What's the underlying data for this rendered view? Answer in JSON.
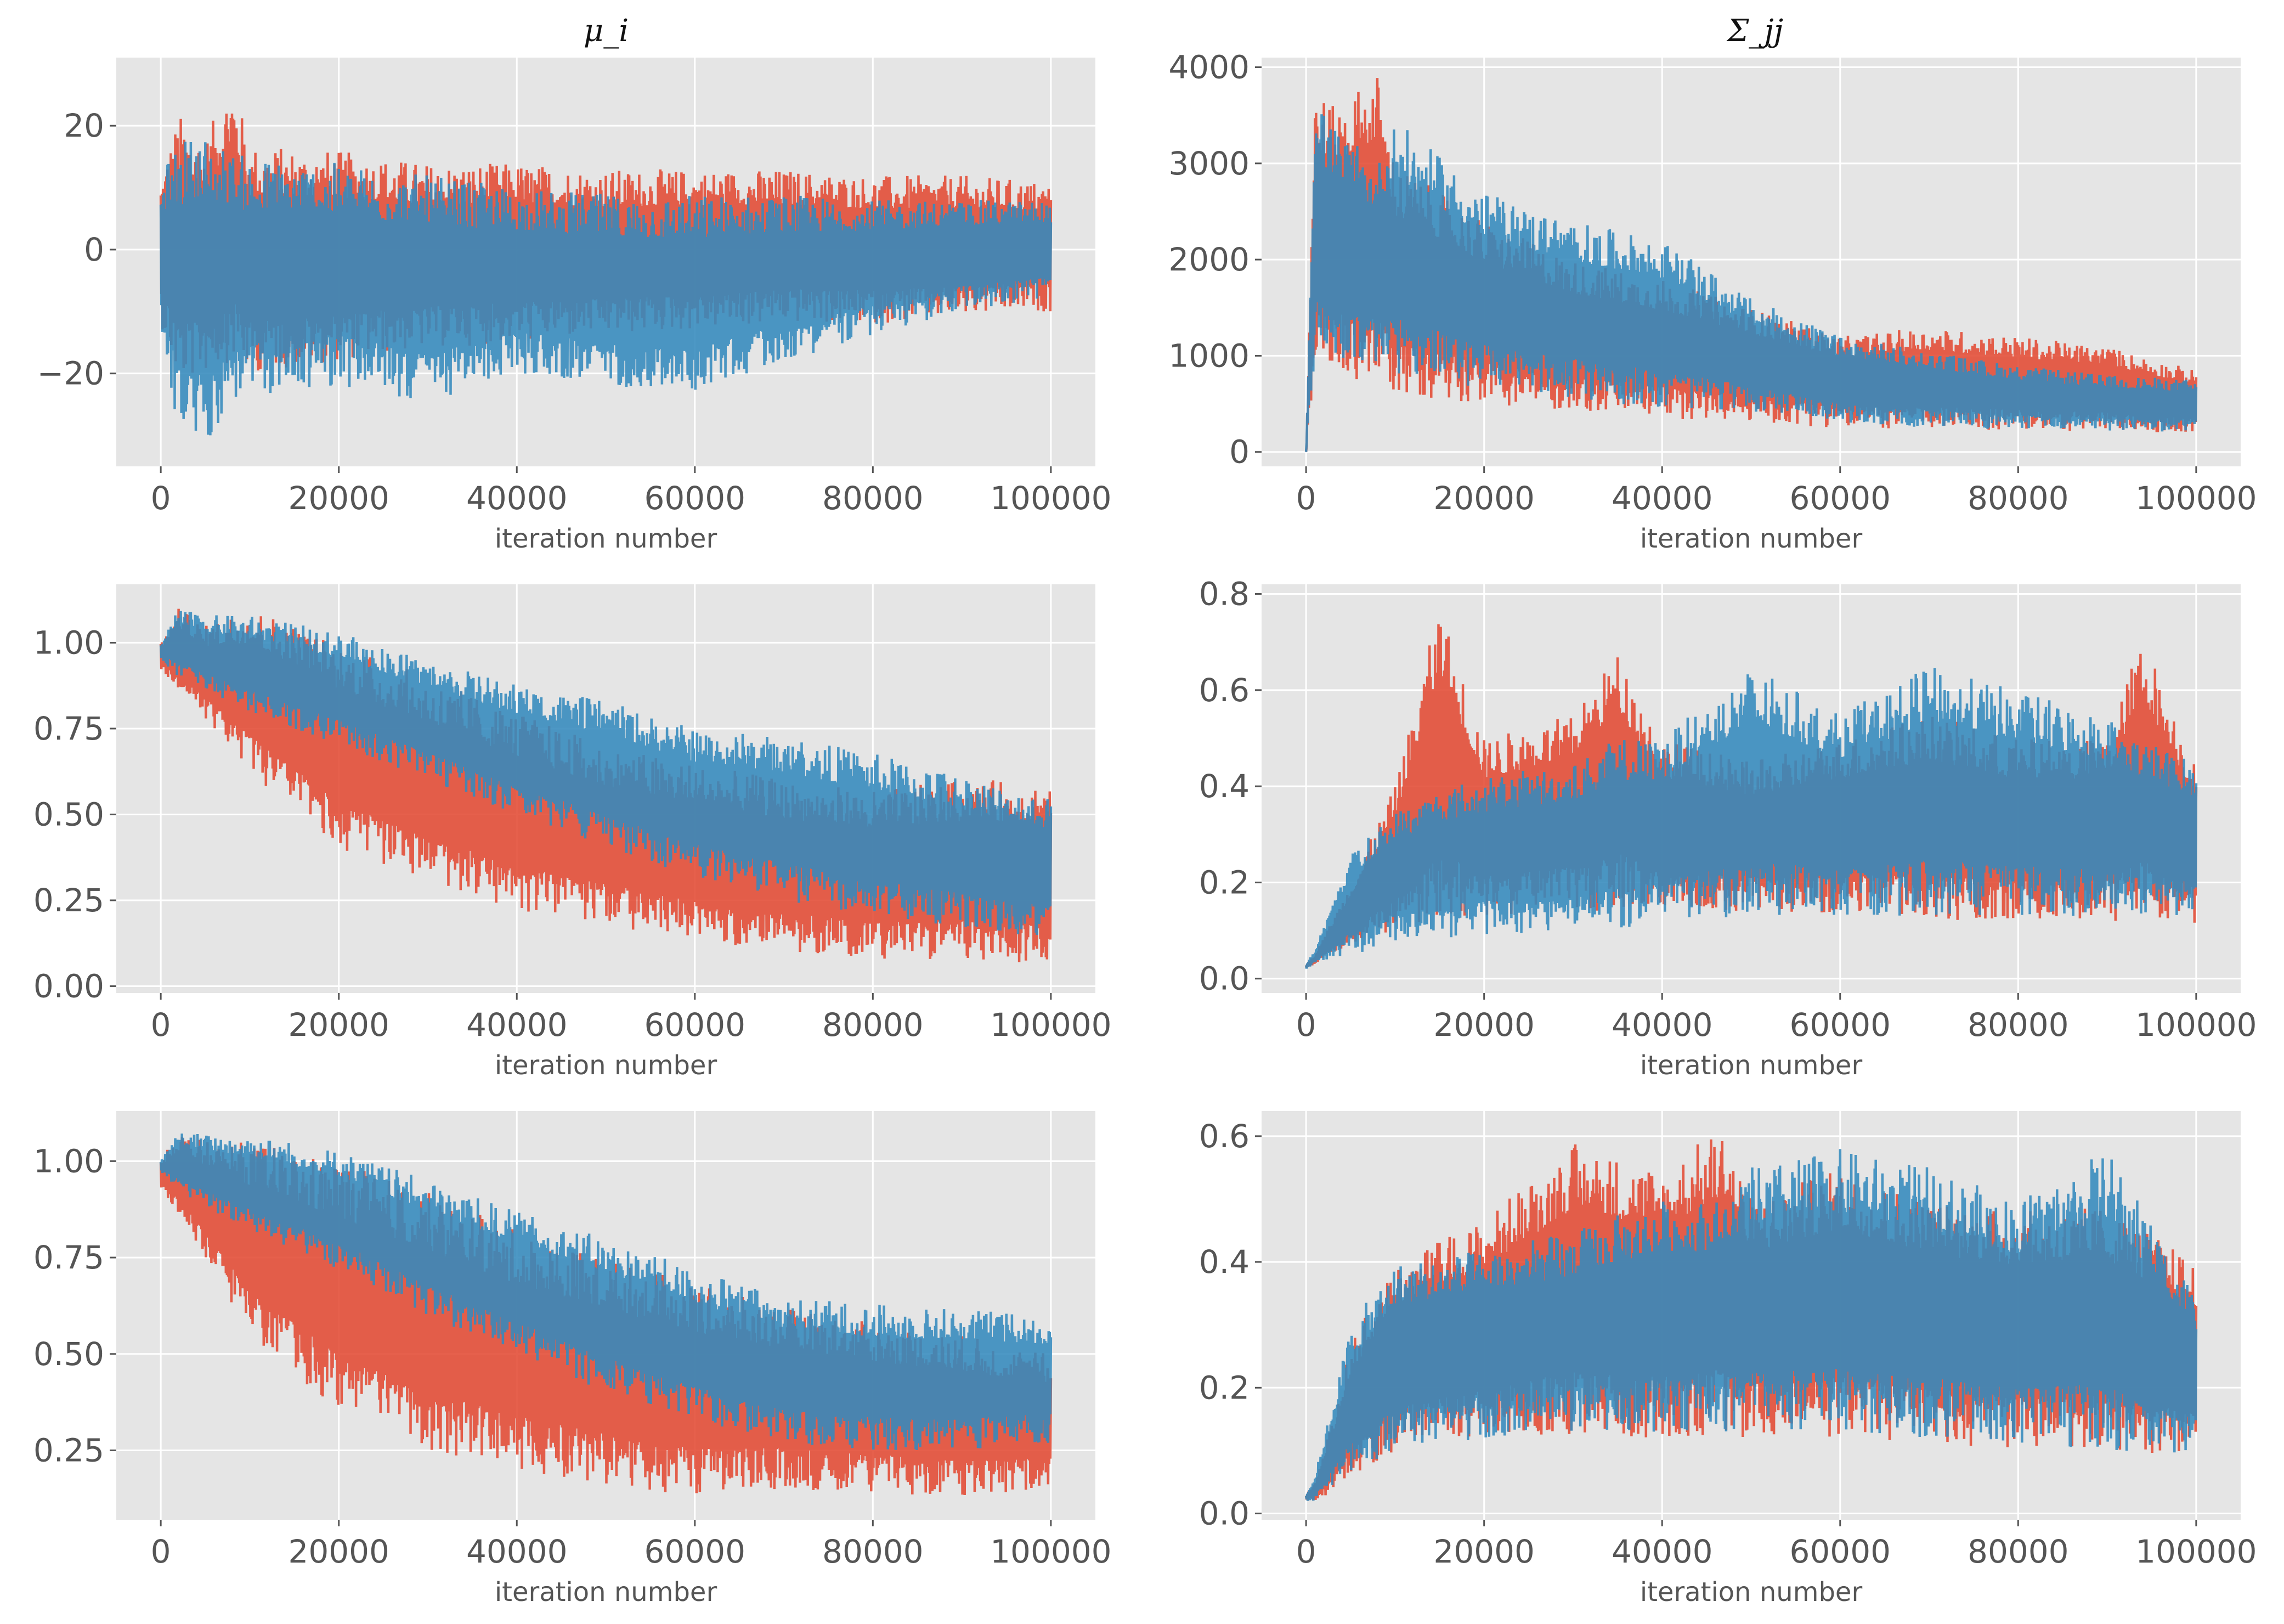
{
  "column_titles": [
    "μ_i",
    "Σ_jj"
  ],
  "colors": {
    "series_1": "#E24A33",
    "series_2": "#348ABD",
    "panel_bg": "#E5E5E5",
    "grid": "#FFFFFF"
  },
  "chart_data": [
    {
      "type": "line",
      "title": "",
      "xlabel": "iteration number",
      "xlim": [
        -5000,
        105000
      ],
      "xticks": [
        0,
        20000,
        40000,
        60000,
        80000,
        100000
      ],
      "ylim": [
        -35,
        31
      ],
      "yticks": [
        -20,
        0,
        20
      ],
      "ytick_labels": [
        "−20",
        "0",
        "20"
      ],
      "series": [
        {
          "color": "#E24A33",
          "x": [
            0,
            2000,
            5000,
            8000,
            10000,
            20000,
            30000,
            40000,
            50000,
            60000,
            70000,
            80000,
            90000,
            100000
          ],
          "upper": [
            12,
            22,
            18,
            28,
            17,
            16,
            14,
            14,
            13,
            13,
            13,
            12,
            12,
            11
          ],
          "lower": [
            -12,
            -22,
            -20,
            -18,
            -20,
            -18,
            -16,
            -15,
            -14,
            -13,
            -12,
            -12,
            -11,
            -10
          ]
        },
        {
          "color": "#348ABD",
          "x": [
            0,
            2000,
            5000,
            8000,
            10000,
            20000,
            30000,
            40000,
            50000,
            60000,
            70000,
            80000,
            90000,
            100000
          ],
          "upper": [
            12,
            18,
            19,
            16,
            15,
            14,
            12,
            10,
            9,
            9,
            9,
            8,
            8,
            8
          ],
          "lower": [
            -14,
            -30,
            -32,
            -25,
            -24,
            -22,
            -25,
            -20,
            -22,
            -23,
            -18,
            -14,
            -10,
            -8
          ]
        }
      ]
    },
    {
      "type": "line",
      "title": "",
      "xlabel": "iteration number",
      "xlim": [
        -5000,
        105000
      ],
      "xticks": [
        0,
        20000,
        40000,
        60000,
        80000,
        100000
      ],
      "ylim": [
        -150,
        4100
      ],
      "yticks": [
        0,
        1000,
        2000,
        3000,
        4000
      ],
      "ytick_labels": [
        "0",
        "1000",
        "2000",
        "3000",
        "4000"
      ],
      "series": [
        {
          "color": "#E24A33",
          "x": [
            0,
            1000,
            3000,
            8000,
            10000,
            20000,
            30000,
            40000,
            50000,
            60000,
            70000,
            80000,
            90000,
            100000
          ],
          "upper": [
            0,
            3800,
            3600,
            3950,
            3000,
            2400,
            2000,
            1800,
            1500,
            1200,
            1300,
            1200,
            1100,
            850
          ],
          "lower": [
            0,
            900,
            800,
            700,
            600,
            500,
            420,
            350,
            300,
            250,
            230,
            220,
            210,
            200
          ]
        },
        {
          "color": "#348ABD",
          "x": [
            0,
            1000,
            3000,
            8000,
            10000,
            20000,
            30000,
            40000,
            50000,
            60000,
            70000,
            80000,
            90000,
            100000
          ],
          "upper": [
            0,
            3700,
            3400,
            3000,
            3450,
            2700,
            2400,
            2200,
            1600,
            1200,
            1050,
            900,
            800,
            750
          ],
          "lower": [
            0,
            1000,
            950,
            900,
            800,
            650,
            550,
            450,
            420,
            300,
            250,
            230,
            220,
            200
          ]
        }
      ]
    },
    {
      "type": "line",
      "title": "",
      "xlabel": "iteration number",
      "xlim": [
        -5000,
        105000
      ],
      "xticks": [
        0,
        20000,
        40000,
        60000,
        80000,
        100000
      ],
      "ylim": [
        -0.02,
        1.17
      ],
      "yticks": [
        0.0,
        0.25,
        0.5,
        0.75,
        1.0
      ],
      "ytick_labels": [
        "0.00",
        "0.25",
        "0.50",
        "0.75",
        "1.00"
      ],
      "series": [
        {
          "color": "#E24A33",
          "x": [
            0,
            2000,
            5000,
            10000,
            20000,
            30000,
            40000,
            50000,
            60000,
            70000,
            80000,
            90000,
            100000
          ],
          "upper": [
            1.0,
            1.1,
            1.05,
            1.11,
            1.0,
            0.9,
            0.8,
            0.7,
            0.65,
            0.6,
            0.57,
            0.6,
            0.6
          ],
          "lower": [
            0.92,
            0.85,
            0.78,
            0.62,
            0.4,
            0.3,
            0.22,
            0.18,
            0.13,
            0.1,
            0.08,
            0.07,
            0.07
          ]
        },
        {
          "color": "#348ABD",
          "x": [
            0,
            2000,
            5000,
            10000,
            20000,
            30000,
            40000,
            50000,
            60000,
            70000,
            80000,
            90000,
            100000
          ],
          "upper": [
            1.0,
            1.1,
            1.08,
            1.08,
            1.03,
            0.95,
            0.88,
            0.83,
            0.75,
            0.73,
            0.68,
            0.62,
            0.55
          ],
          "lower": [
            0.95,
            0.9,
            0.86,
            0.8,
            0.7,
            0.6,
            0.5,
            0.4,
            0.32,
            0.25,
            0.2,
            0.17,
            0.14
          ]
        }
      ]
    },
    {
      "type": "line",
      "title": "",
      "xlabel": "iteration number",
      "xlim": [
        -5000,
        105000
      ],
      "xticks": [
        0,
        20000,
        40000,
        60000,
        80000,
        100000
      ],
      "ylim": [
        -0.03,
        0.82
      ],
      "yticks": [
        0.0,
        0.2,
        0.4,
        0.6,
        0.8
      ],
      "ytick_labels": [
        "0.0",
        "0.2",
        "0.4",
        "0.6",
        "0.8"
      ],
      "series": [
        {
          "color": "#E24A33",
          "x": [
            0,
            1000,
            5000,
            10000,
            15000,
            20000,
            30000,
            35000,
            40000,
            50000,
            60000,
            70000,
            80000,
            90000,
            94000,
            100000
          ],
          "upper": [
            0.03,
            0.05,
            0.2,
            0.4,
            0.78,
            0.5,
            0.55,
            0.68,
            0.5,
            0.45,
            0.5,
            0.55,
            0.5,
            0.5,
            0.72,
            0.45
          ],
          "lower": [
            0.02,
            0.03,
            0.07,
            0.1,
            0.12,
            0.13,
            0.14,
            0.14,
            0.14,
            0.14,
            0.13,
            0.12,
            0.12,
            0.12,
            0.11,
            0.11
          ]
        },
        {
          "color": "#348ABD",
          "x": [
            0,
            1000,
            5000,
            10000,
            15000,
            20000,
            30000,
            35000,
            40000,
            50000,
            60000,
            70000,
            80000,
            90000,
            94000,
            100000
          ],
          "upper": [
            0.03,
            0.06,
            0.26,
            0.35,
            0.4,
            0.42,
            0.45,
            0.5,
            0.5,
            0.65,
            0.55,
            0.65,
            0.6,
            0.55,
            0.5,
            0.45
          ],
          "lower": [
            0.02,
            0.03,
            0.05,
            0.07,
            0.08,
            0.09,
            0.1,
            0.1,
            0.12,
            0.13,
            0.13,
            0.13,
            0.13,
            0.13,
            0.13,
            0.13
          ]
        }
      ]
    },
    {
      "type": "line",
      "title": "",
      "xlabel": "iteration number",
      "xlim": [
        -5000,
        105000
      ],
      "xticks": [
        0,
        20000,
        40000,
        60000,
        80000,
        100000
      ],
      "ylim": [
        0.07,
        1.13
      ],
      "yticks": [
        0.25,
        0.5,
        0.75,
        1.0
      ],
      "ytick_labels": [
        "0.25",
        "0.50",
        "0.75",
        "1.00"
      ],
      "series": [
        {
          "color": "#E24A33",
          "x": [
            0,
            2000,
            5000,
            10000,
            20000,
            30000,
            40000,
            50000,
            60000,
            70000,
            80000,
            90000,
            100000
          ],
          "upper": [
            1.0,
            1.08,
            1.05,
            1.05,
            1.0,
            0.92,
            0.82,
            0.75,
            0.68,
            0.62,
            0.58,
            0.55,
            0.5
          ],
          "lower": [
            0.93,
            0.85,
            0.75,
            0.55,
            0.35,
            0.25,
            0.2,
            0.16,
            0.13,
            0.15,
            0.14,
            0.13,
            0.15
          ]
        },
        {
          "color": "#348ABD",
          "x": [
            0,
            2000,
            5000,
            10000,
            20000,
            30000,
            40000,
            50000,
            60000,
            70000,
            80000,
            90000,
            100000
          ],
          "upper": [
            1.0,
            1.08,
            1.07,
            1.07,
            1.03,
            0.95,
            0.87,
            0.8,
            0.72,
            0.65,
            0.63,
            0.62,
            0.6
          ],
          "lower": [
            0.97,
            0.92,
            0.88,
            0.82,
            0.72,
            0.6,
            0.5,
            0.4,
            0.33,
            0.27,
            0.25,
            0.25,
            0.27
          ]
        }
      ]
    },
    {
      "type": "line",
      "title": "",
      "xlabel": "iteration number",
      "xlim": [
        -5000,
        105000
      ],
      "xticks": [
        0,
        20000,
        40000,
        60000,
        80000,
        100000
      ],
      "ylim": [
        -0.01,
        0.64
      ],
      "yticks": [
        0.0,
        0.2,
        0.4,
        0.6
      ],
      "ytick_labels": [
        "0.0",
        "0.2",
        "0.4",
        "0.6"
      ],
      "series": [
        {
          "color": "#E24A33",
          "x": [
            0,
            1000,
            3000,
            5000,
            10000,
            20000,
            30000,
            40000,
            47000,
            50000,
            60000,
            70000,
            80000,
            90000,
            100000
          ],
          "upper": [
            0.03,
            0.05,
            0.15,
            0.27,
            0.4,
            0.47,
            0.59,
            0.55,
            0.62,
            0.5,
            0.55,
            0.5,
            0.48,
            0.49,
            0.4
          ],
          "lower": [
            0.02,
            0.02,
            0.03,
            0.05,
            0.1,
            0.12,
            0.12,
            0.12,
            0.12,
            0.12,
            0.12,
            0.11,
            0.1,
            0.1,
            0.09
          ]
        },
        {
          "color": "#348ABD",
          "x": [
            0,
            1000,
            3000,
            5000,
            10000,
            20000,
            30000,
            40000,
            47000,
            50000,
            60000,
            70000,
            80000,
            90000,
            100000
          ],
          "upper": [
            0.03,
            0.06,
            0.18,
            0.3,
            0.4,
            0.42,
            0.45,
            0.5,
            0.5,
            0.55,
            0.58,
            0.55,
            0.5,
            0.58,
            0.35
          ],
          "lower": [
            0.02,
            0.02,
            0.04,
            0.06,
            0.1,
            0.12,
            0.13,
            0.13,
            0.13,
            0.13,
            0.13,
            0.12,
            0.11,
            0.1,
            0.09
          ]
        }
      ]
    }
  ]
}
